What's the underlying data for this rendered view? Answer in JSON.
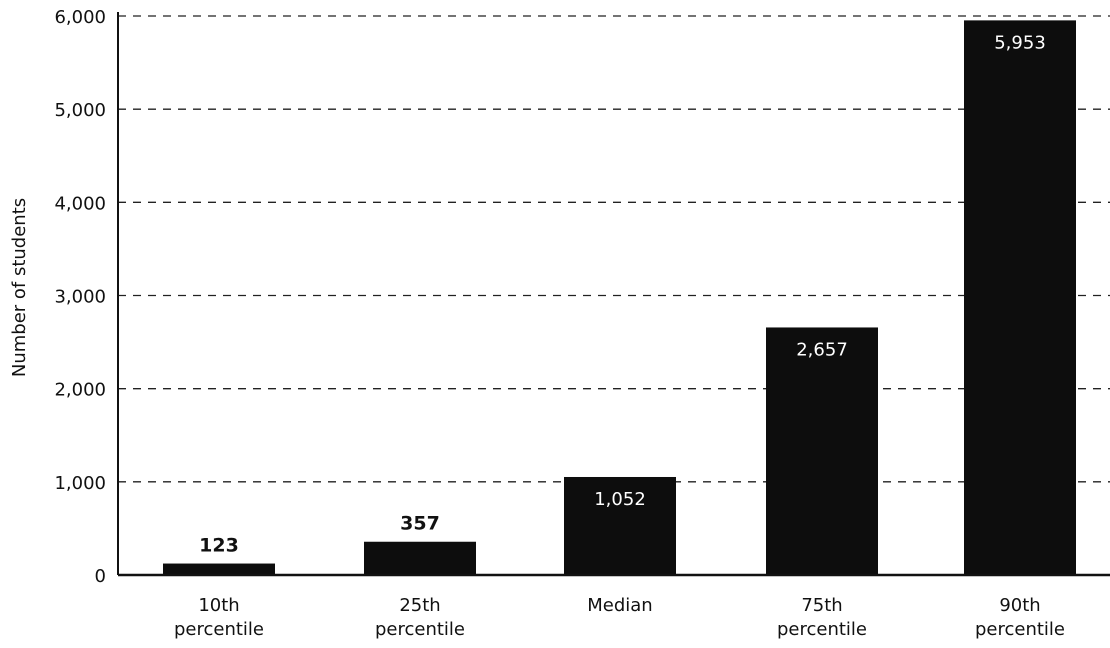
{
  "chart_data": {
    "type": "bar",
    "categories": [
      [
        "10th",
        "percentile"
      ],
      [
        "25th",
        "percentile"
      ],
      [
        "Median"
      ],
      [
        "75th",
        "percentile"
      ],
      [
        "90th",
        "percentile"
      ]
    ],
    "values": [
      123,
      357,
      1052,
      2657,
      5953
    ],
    "data_labels": [
      "123",
      "357",
      "1,052",
      "2,657",
      "5,953"
    ],
    "ylabel": "Number of students",
    "ylim": [
      0,
      6000
    ],
    "yticks": [
      0,
      1000,
      2000,
      3000,
      4000,
      5000,
      6000
    ],
    "ytick_labels": [
      "0",
      "1,000",
      "2,000",
      "3,000",
      "4,000",
      "5,000",
      "6,000"
    ],
    "grid": "dashed horizontal",
    "bar_color": "#0d0d0d"
  }
}
